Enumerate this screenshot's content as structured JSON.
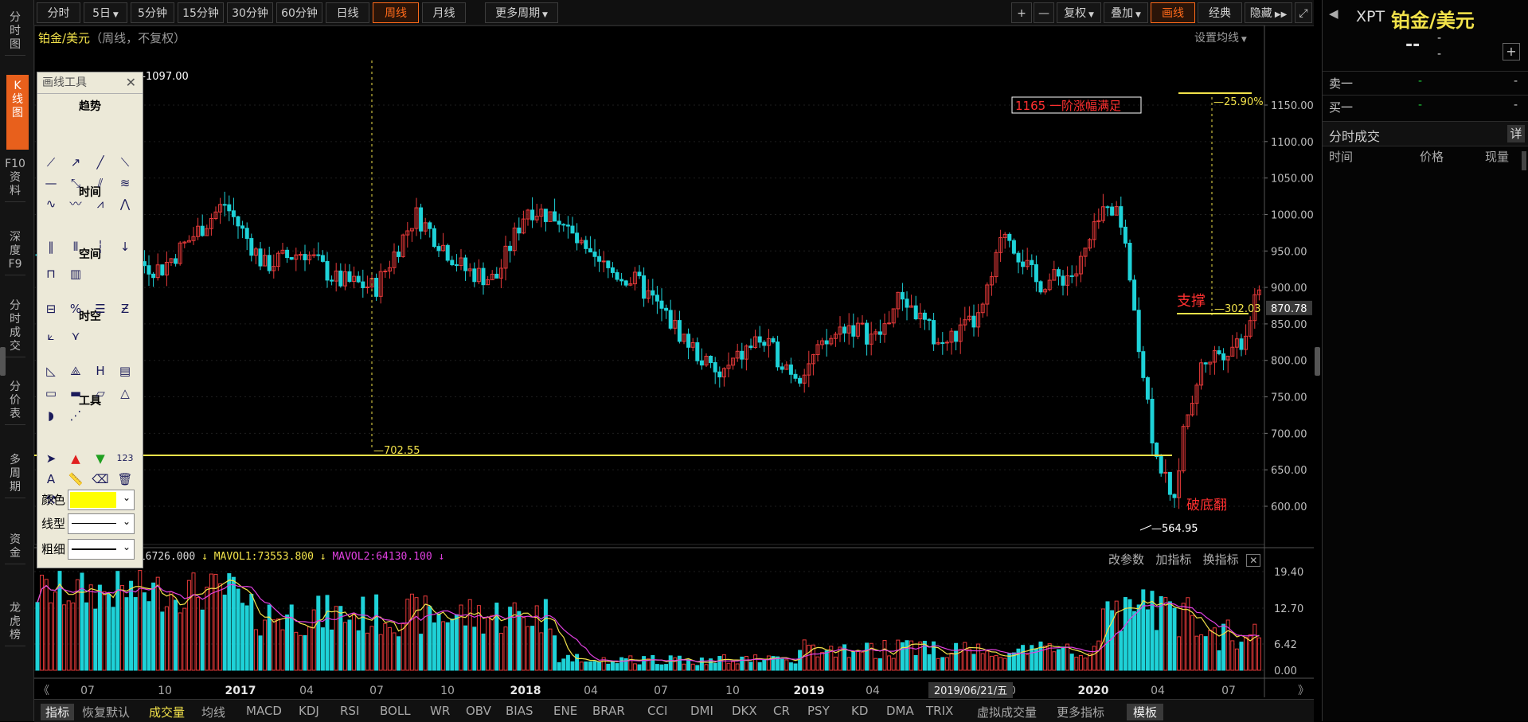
{
  "left_tabs": [
    {
      "label": "分时图",
      "active": false
    },
    {
      "label": "K线图",
      "active": true
    },
    {
      "label": "F10资料",
      "active": false
    },
    {
      "label": "深度F9",
      "active": false
    },
    {
      "label": "分时成交",
      "active": false
    },
    {
      "label": "分价表",
      "active": false
    },
    {
      "label": "多周期",
      "active": false
    },
    {
      "label": "资金",
      "active": false
    },
    {
      "label": "龙虎榜",
      "active": false
    }
  ],
  "period_tabs": [
    {
      "label": "分时",
      "active": false
    },
    {
      "label": "5日",
      "dropdown": true,
      "active": false
    },
    {
      "label": "5分钟",
      "active": false
    },
    {
      "label": "15分钟",
      "active": false
    },
    {
      "label": "30分钟",
      "active": false
    },
    {
      "label": "60分钟",
      "active": false
    },
    {
      "label": "日线",
      "active": false
    },
    {
      "label": "周线",
      "active": true
    },
    {
      "label": "月线",
      "active": false
    },
    {
      "label": "更多周期",
      "dropdown": true,
      "active": false
    }
  ],
  "toolbar_right": {
    "plus": "+",
    "minus": "—",
    "fuquan": "复权",
    "overlay": "叠加",
    "draw": "画线",
    "classic": "经典",
    "hide": "隐藏",
    "expand_icon": "expand-icon"
  },
  "chart_title": {
    "symbol": "铂金/美元",
    "mode": "（周线，不复权）",
    "set_ma": "设置均线"
  },
  "drawing_tools": {
    "title": "画线工具",
    "sections": [
      "趋势",
      "时间",
      "空间",
      "时空",
      "工具"
    ],
    "color_label": "颜色",
    "line_type_label": "线型",
    "thickness_label": "粗细",
    "color_value": "#ffff00"
  },
  "annotations": {
    "top_left_price": "1097.00",
    "left_low": "702.55",
    "low_point": "564.95",
    "target_box": "1165 一阶涨幅满足",
    "percent": "25.90%",
    "support_label": "支撑",
    "support_price": "302.03",
    "break_label": "破底翻",
    "last_price": "870.78"
  },
  "price_axis": [
    "1150.00",
    "1100.00",
    "1050.00",
    "1000.00",
    "950.00",
    "900.00",
    "850.00",
    "800.00",
    "750.00",
    "700.00",
    "650.00",
    "600.00"
  ],
  "volume_header": {
    "vol": "VOLUME:16726.000",
    "mavol1": "MAVOL1:73553.800",
    "mavol2": "MAVOL2:64130.100",
    "buttons": [
      "改参数",
      "加指标",
      "换指标"
    ]
  },
  "volume_axis": [
    "19.40",
    "12.70",
    "6.42",
    "0.00"
  ],
  "x_axis": [
    {
      "label": "07"
    },
    {
      "label": "10"
    },
    {
      "label": "2017",
      "bold": true
    },
    {
      "label": "04"
    },
    {
      "label": "07"
    },
    {
      "label": "10"
    },
    {
      "label": "2018",
      "bold": true
    },
    {
      "label": "04"
    },
    {
      "label": "07"
    },
    {
      "label": "10"
    },
    {
      "label": "2019",
      "bold": true
    },
    {
      "label": "04"
    },
    {
      "label": "07"
    },
    {
      "label": "10"
    },
    {
      "label": "2020",
      "bold": true
    },
    {
      "label": "04"
    },
    {
      "label": "07"
    }
  ],
  "cursor_date": "2019/06/21/五",
  "bottom_tabs": [
    {
      "label": "指标",
      "active": true
    },
    {
      "label": "恢复默认"
    },
    {
      "label": "成交量",
      "highlight": true
    },
    {
      "label": "均线"
    },
    {
      "label": "MACD"
    },
    {
      "label": "KDJ"
    },
    {
      "label": "RSI"
    },
    {
      "label": "BOLL"
    },
    {
      "label": "WR"
    },
    {
      "label": "OBV"
    },
    {
      "label": "BIAS"
    },
    {
      "label": "ENE"
    },
    {
      "label": "BRAR"
    },
    {
      "label": "CCI"
    },
    {
      "label": "DMI"
    },
    {
      "label": "DKX"
    },
    {
      "label": "CR"
    },
    {
      "label": "PSY"
    },
    {
      "label": "KD"
    },
    {
      "label": "DMA"
    },
    {
      "label": "TRIX"
    },
    {
      "label": "虚拟成交量"
    },
    {
      "label": "更多指标"
    },
    {
      "label": "模板",
      "boxed": true
    }
  ],
  "right_panel": {
    "code": "XPT",
    "name": "铂金/美元",
    "price": "--",
    "chg1": "-",
    "chg2": "-",
    "sell_label": "卖一",
    "buy_label": "买一",
    "dash": "-",
    "ticks_title": "分时成交",
    "detail_btn": "详",
    "col_time": "时间",
    "col_price": "价格",
    "col_vol": "现量"
  },
  "colors": {
    "up": "#e83a3a",
    "down": "#1ed2d8",
    "accent": "#ff6a1a",
    "yellow": "#f2e24a",
    "mavol2": "#e040e0"
  }
}
